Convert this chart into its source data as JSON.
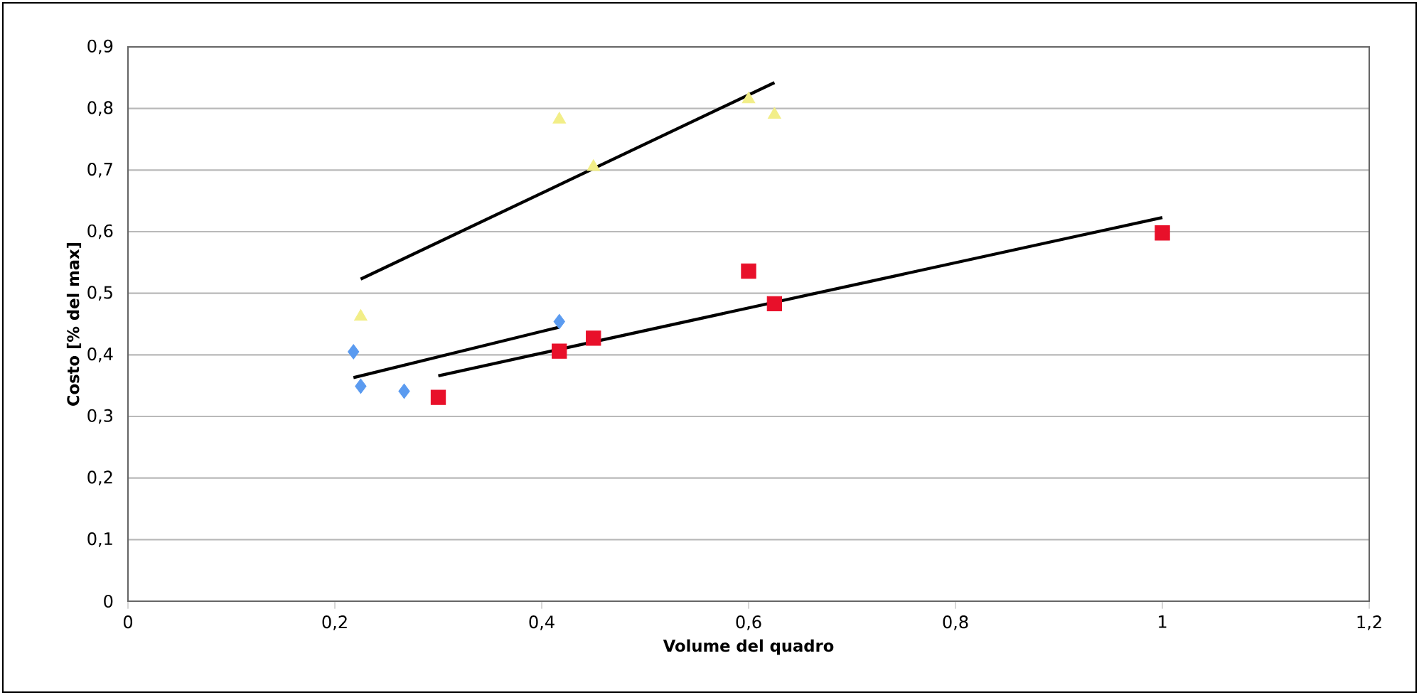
{
  "chart_data": {
    "type": "scatter",
    "xlabel": "Volume del quadro",
    "ylabel": "Costo [% del max]",
    "xlim": [
      0,
      1.2
    ],
    "ylim": [
      0,
      0.9
    ],
    "xticks": [
      0,
      {
        "value": 0.2,
        "label": "0,2"
      },
      {
        "value": 0.4,
        "label": "0,4"
      },
      {
        "value": 0.6,
        "label": "0,6"
      },
      {
        "value": 0.8,
        "label": "0,8"
      },
      1,
      {
        "value": 1.2,
        "label": "1,2"
      }
    ],
    "yticks": [
      0,
      {
        "value": 0.1,
        "label": "0,1"
      },
      {
        "value": 0.2,
        "label": "0,2"
      },
      {
        "value": 0.3,
        "label": "0,3"
      },
      {
        "value": 0.4,
        "label": "0,4"
      },
      {
        "value": 0.5,
        "label": "0,5"
      },
      {
        "value": 0.6,
        "label": "0,6"
      },
      {
        "value": 0.7,
        "label": "0,7"
      },
      {
        "value": 0.8,
        "label": "0,8"
      },
      {
        "value": 0.9,
        "label": "0,9"
      }
    ],
    "grid": "y",
    "series": [
      {
        "marker": "diamond",
        "color": "#5b9bf0",
        "x": [
          0.218,
          0.225,
          0.267,
          0.417
        ],
        "values": [
          0.405,
          0.349,
          0.341,
          0.454
        ]
      },
      {
        "marker": "square",
        "color": "#e8102a",
        "x": [
          0.3,
          0.417,
          0.45,
          0.6,
          0.625,
          1.0
        ],
        "values": [
          0.331,
          0.406,
          0.427,
          0.536,
          0.483,
          0.598
        ]
      },
      {
        "marker": "triangle",
        "color": "#f2ee88",
        "x": [
          0.225,
          0.417,
          0.45,
          0.6,
          0.625
        ],
        "values": [
          0.462,
          0.782,
          0.705,
          0.815,
          0.79
        ]
      },
      {
        "type": "line",
        "marker": "none",
        "line_style": "solid",
        "color": "#000000",
        "x": [
          0.225,
          0.625
        ],
        "values": [
          0.523,
          0.842
        ]
      },
      {
        "type": "line",
        "marker": "none",
        "line_style": "solid",
        "color": "#000000",
        "x": [
          0.218,
          0.417
        ],
        "values": [
          0.363,
          0.445
        ]
      },
      {
        "type": "line",
        "marker": "none",
        "line_style": "solid",
        "color": "#000000",
        "x": [
          0.3,
          1.0
        ],
        "values": [
          0.366,
          0.623
        ]
      }
    ]
  }
}
